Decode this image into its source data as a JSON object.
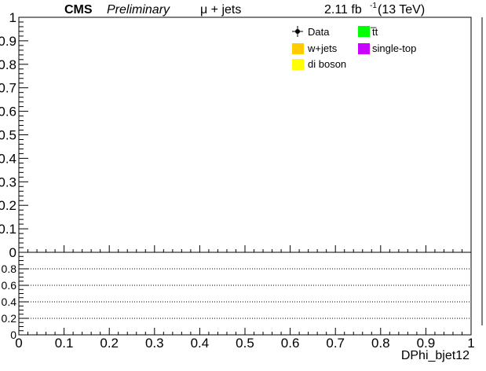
{
  "header": {
    "experiment": "CMS",
    "status": "Preliminary",
    "channel": "μ + jets",
    "lumi_value": "2.11 fb",
    "lumi_exponent": "-1",
    "energy": "(13 TeV)"
  },
  "legend": {
    "placement": "top-right",
    "entries": [
      {
        "label": "Data",
        "kind": "marker",
        "color": "#000000"
      },
      {
        "label": "t̅t",
        "kind": "box",
        "color": "#00ff00"
      },
      {
        "label": "w+jets",
        "kind": "box",
        "color": "#ffcc00"
      },
      {
        "label": "single-top",
        "kind": "box",
        "color": "#cc00ff"
      },
      {
        "label": "di boson",
        "kind": "box",
        "color": "#ffff00"
      }
    ]
  },
  "chart_data": [
    {
      "type": "bar",
      "panel": "main",
      "xlim": [
        0,
        1
      ],
      "ylim": [
        0,
        1
      ],
      "yticks": [
        "0",
        "0.1",
        "0.2",
        "0.3",
        "0.4",
        "0.5",
        "0.6",
        "0.7",
        "0.8",
        "0.9",
        "1"
      ],
      "series": [],
      "grid": false
    },
    {
      "type": "line",
      "panel": "ratio",
      "xlim": [
        0,
        1
      ],
      "ylim": [
        0,
        1
      ],
      "xlabel": "DPhi_bjet12",
      "xticks": [
        "0",
        "0.1",
        "0.2",
        "0.3",
        "0.4",
        "0.5",
        "0.6",
        "0.7",
        "0.8",
        "0.9",
        "1"
      ],
      "yticks": [
        "0",
        "0.2",
        "0.4",
        "0.6",
        "0.8"
      ],
      "reference_lines": [
        0.2,
        0.4,
        0.6,
        0.8
      ],
      "series": [],
      "grid": false
    }
  ]
}
